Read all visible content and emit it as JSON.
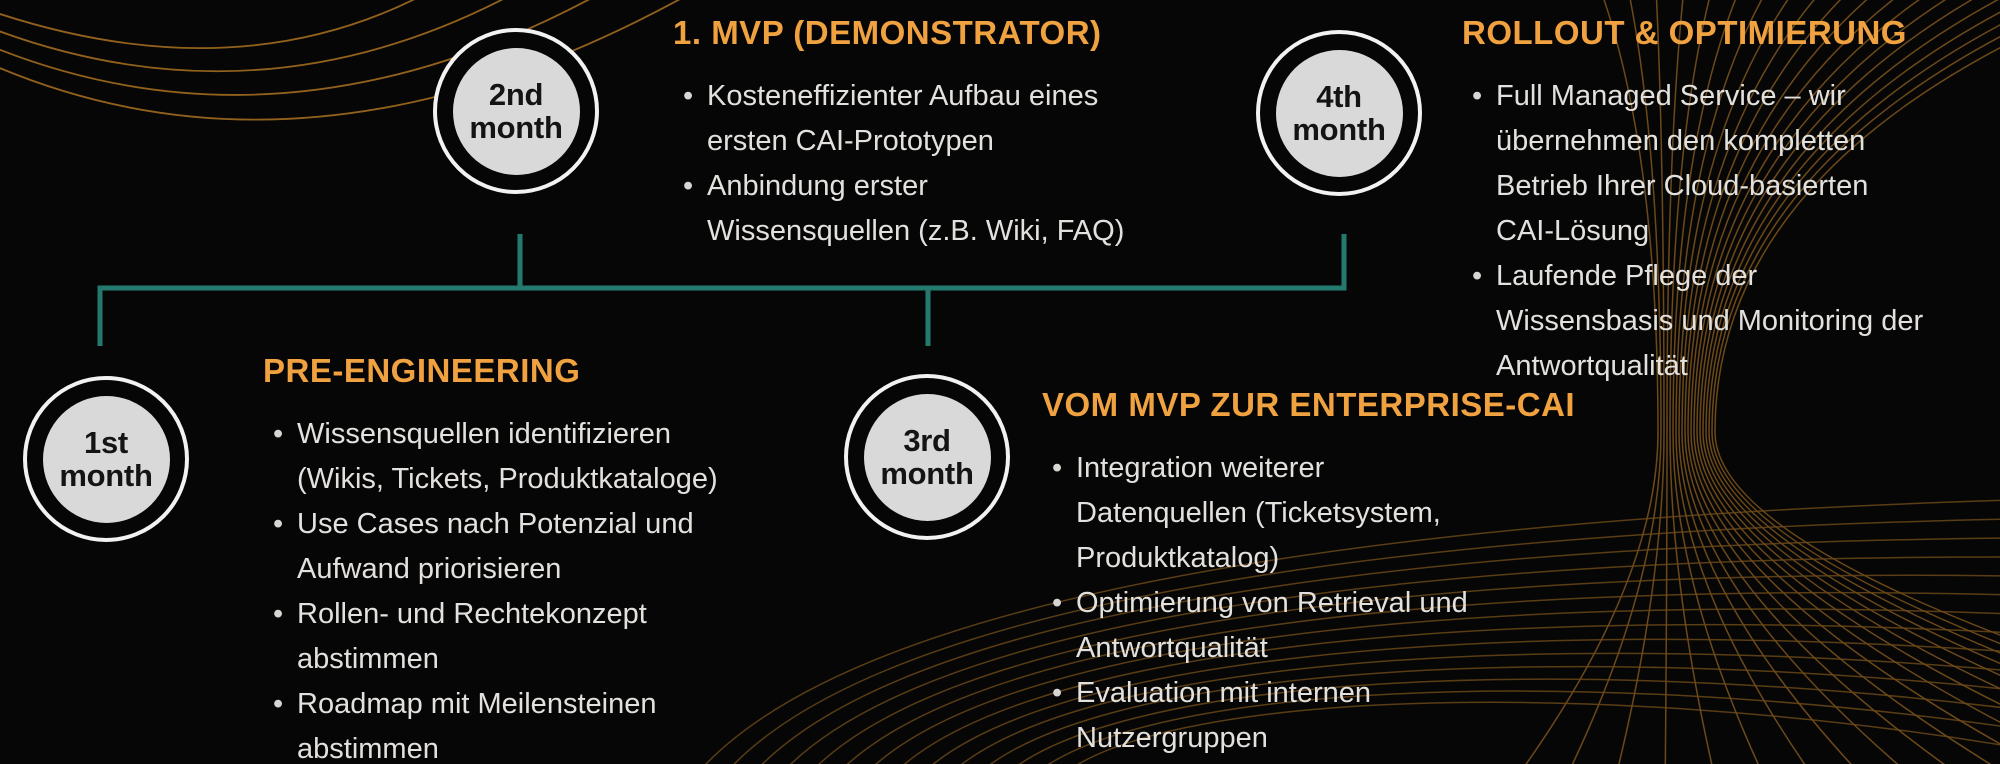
{
  "theme": {
    "background": "#070606",
    "accent_orange": "#F0A240",
    "connector_teal": "#24796F",
    "text_light": "#E3E1DD",
    "circle_fill": "#D9D9D9",
    "circle_ring": "#F2F2F2",
    "circle_text": "#141414",
    "deco_gold": "#7E561D",
    "deco_gold_bright": "#9A671F",
    "deco_gold_dim": "#6E4B19"
  },
  "phases": [
    {
      "month_label": "1st\nmonth",
      "title": "PRE-ENGINEERING",
      "bullets": [
        "Wissensquellen identifizieren\n(Wikis, Tickets, Produktkataloge)",
        "Use Cases nach Potenzial und\nAufwand priorisieren",
        "Rollen- und Rechtekonzept\nabstimmen",
        "Roadmap mit Meilensteinen\nabstimmen"
      ]
    },
    {
      "month_label": "2nd\nmonth",
      "title": "1. MVP (DEMONSTRATOR)",
      "bullets": [
        "Kosteneffizienter Aufbau eines\nersten CAI-Prototypen",
        "Anbindung erster\nWissensquellen (z.B. Wiki, FAQ)"
      ]
    },
    {
      "month_label": "3rd\nmonth",
      "title": "VOM MVP ZUR ENTERPRISE-CAI",
      "bullets": [
        "Integration weiterer\nDatenquellen (Ticketsystem,\nProduktkatalog)",
        "Optimierung von Retrieval und\nAntwortqualität",
        "Evaluation mit internen\nNutzergruppen"
      ]
    },
    {
      "month_label": "4th\nmonth",
      "title": "ROLLOUT & OPTIMIERUNG",
      "bullets": [
        "Full Managed Service – wir\nübernehmen den kompletten\nBetrieb Ihrer Cloud-basierten\nCAI-Lösung",
        "Laufende Pflege der\nWissensbasis und Monitoring der\nAntwortqualität"
      ]
    }
  ],
  "bullet_glyph": "•"
}
